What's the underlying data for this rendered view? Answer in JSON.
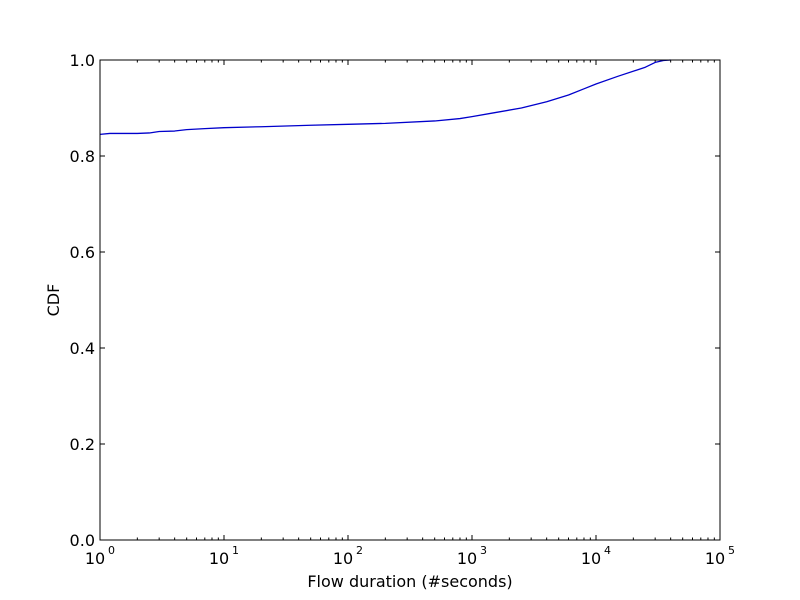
{
  "chart_data": {
    "type": "line",
    "xscale": "log",
    "xlabel": "Flow duration (#seconds)",
    "ylabel": "CDF",
    "xlim": [
      1,
      100000
    ],
    "ylim": [
      0.0,
      1.0
    ],
    "grid": false,
    "x_ticks": [
      {
        "base": "10",
        "exp": "0",
        "value": 1
      },
      {
        "base": "10",
        "exp": "1",
        "value": 10
      },
      {
        "base": "10",
        "exp": "2",
        "value": 100
      },
      {
        "base": "10",
        "exp": "3",
        "value": 1000
      },
      {
        "base": "10",
        "exp": "4",
        "value": 10000
      },
      {
        "base": "10",
        "exp": "5",
        "value": 100000
      }
    ],
    "y_ticks": [
      {
        "label": "0.0",
        "value": 0.0
      },
      {
        "label": "0.2",
        "value": 0.2
      },
      {
        "label": "0.4",
        "value": 0.4
      },
      {
        "label": "0.6",
        "value": 0.6
      },
      {
        "label": "0.8",
        "value": 0.8
      },
      {
        "label": "1.0",
        "value": 1.0
      }
    ],
    "series": [
      {
        "color": "#0000cc",
        "points": [
          [
            1,
            0.845
          ],
          [
            1.2,
            0.847
          ],
          [
            1.5,
            0.847
          ],
          [
            2,
            0.847
          ],
          [
            2.5,
            0.848
          ],
          [
            3,
            0.851
          ],
          [
            4,
            0.852
          ],
          [
            5,
            0.855
          ],
          [
            7,
            0.857
          ],
          [
            10,
            0.859
          ],
          [
            20,
            0.861
          ],
          [
            50,
            0.864
          ],
          [
            100,
            0.866
          ],
          [
            200,
            0.868
          ],
          [
            500,
            0.873
          ],
          [
            800,
            0.878
          ],
          [
            1000,
            0.882
          ],
          [
            1500,
            0.89
          ],
          [
            2500,
            0.9
          ],
          [
            4000,
            0.913
          ],
          [
            6000,
            0.927
          ],
          [
            8000,
            0.94
          ],
          [
            10000,
            0.95
          ],
          [
            15000,
            0.966
          ],
          [
            25000,
            0.985
          ],
          [
            30000,
            0.995
          ],
          [
            35000,
            0.999
          ],
          [
            40000,
            1.0
          ]
        ]
      }
    ]
  }
}
